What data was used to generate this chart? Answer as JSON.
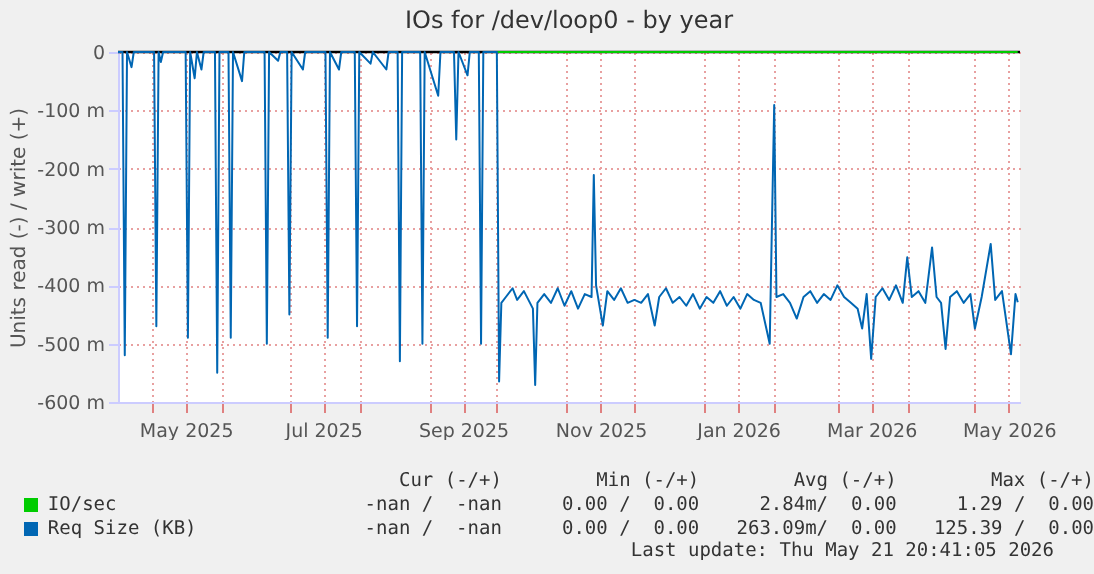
{
  "chart_data": {
    "type": "line",
    "title": "IOs for /dev/loop0 - by year",
    "ylabel": "Units read (-) / write (+)",
    "xlim": [
      "2025-04-16",
      "2026-05-21"
    ],
    "xticks": [
      {
        "value": "2025-05-01",
        "label": null
      },
      {
        "value": "2025-05-16",
        "label": "May 2025"
      },
      {
        "value": "2025-06-01",
        "label": null
      },
      {
        "value": "2025-07-01",
        "label": null
      },
      {
        "value": "2025-07-16",
        "label": "Jul 2025"
      },
      {
        "value": "2025-08-01",
        "label": null
      },
      {
        "value": "2025-09-01",
        "label": null
      },
      {
        "value": "2025-09-16",
        "label": "Sep 2025"
      },
      {
        "value": "2025-10-01",
        "label": null
      },
      {
        "value": "2025-11-01",
        "label": null
      },
      {
        "value": "2025-11-16",
        "label": "Nov 2025"
      },
      {
        "value": "2025-12-01",
        "label": null
      },
      {
        "value": "2026-01-01",
        "label": null
      },
      {
        "value": "2026-01-16",
        "label": "Jan 2026"
      },
      {
        "value": "2026-02-01",
        "label": null
      },
      {
        "value": "2026-03-01",
        "label": null
      },
      {
        "value": "2026-03-16",
        "label": "Mar 2026"
      },
      {
        "value": "2026-04-01",
        "label": null
      },
      {
        "value": "2026-05-01",
        "label": null
      },
      {
        "value": "2026-05-16",
        "label": "May 2026"
      }
    ],
    "ylim": [
      -600,
      0
    ],
    "yticks": [
      {
        "value": -600,
        "label": "-600 m"
      },
      {
        "value": -500,
        "label": "-500 m"
      },
      {
        "value": -400,
        "label": "-400 m"
      },
      {
        "value": -300,
        "label": "-300 m"
      },
      {
        "value": -200,
        "label": "-200 m"
      },
      {
        "value": -100,
        "label": "-100 m"
      },
      0
    ],
    "grid": true,
    "legend": "bottom",
    "ref_lines": [
      {
        "axis": "y",
        "value": 0,
        "color": "#000000"
      }
    ],
    "series": [
      {
        "name": "IO/sec",
        "color": "#00cc00",
        "x": [
          "2025-10-01",
          "2026-05-20"
        ],
        "values": [
          0,
          0
        ]
      },
      {
        "name": "Req Size (KB)",
        "color": "#0066b3",
        "x": [
          "2025-04-16",
          "2025-04-18",
          "2025-04-19",
          "2025-04-20",
          "2025-04-22",
          "2025-04-23",
          "2025-05-02",
          "2025-05-03",
          "2025-05-04",
          "2025-05-05",
          "2025-05-06",
          "2025-05-16",
          "2025-05-17",
          "2025-05-18",
          "2025-05-20",
          "2025-05-21",
          "2025-05-23",
          "2025-05-24",
          "2025-05-29",
          "2025-05-30",
          "2025-05-31",
          "2025-06-04",
          "2025-06-05",
          "2025-06-06",
          "2025-06-10",
          "2025-06-11",
          "2025-06-20",
          "2025-06-21",
          "2025-06-22",
          "2025-06-26",
          "2025-06-27",
          "2025-06-30",
          "2025-07-01",
          "2025-07-02",
          "2025-07-07",
          "2025-07-08",
          "2025-07-17",
          "2025-07-18",
          "2025-07-19",
          "2025-07-23",
          "2025-07-24",
          "2025-07-30",
          "2025-07-31",
          "2025-08-01",
          "2025-08-06",
          "2025-08-07",
          "2025-08-13",
          "2025-08-14",
          "2025-08-18",
          "2025-08-19",
          "2025-08-20",
          "2025-08-28",
          "2025-08-29",
          "2025-08-30",
          "2025-09-05",
          "2025-09-06",
          "2025-09-12",
          "2025-09-13",
          "2025-09-14",
          "2025-09-18",
          "2025-09-19",
          "2025-09-23",
          "2025-09-24",
          "2025-09-25",
          "2025-10-01",
          "2025-10-02",
          "2025-10-03",
          "2025-10-05",
          "2025-10-08",
          "2025-10-10",
          "2025-10-13",
          "2025-10-17",
          "2025-10-18",
          "2025-10-19",
          "2025-10-22",
          "2025-10-25",
          "2025-10-28",
          "2025-10-31",
          "2025-11-03",
          "2025-11-06",
          "2025-11-09",
          "2025-11-12",
          "2025-11-13",
          "2025-11-14",
          "2025-11-17",
          "2025-11-19",
          "2025-11-22",
          "2025-11-25",
          "2025-11-28",
          "2025-12-01",
          "2025-12-04",
          "2025-12-07",
          "2025-12-10",
          "2025-12-12",
          "2025-12-15",
          "2025-12-18",
          "2025-12-21",
          "2025-12-24",
          "2025-12-27",
          "2025-12-30",
          "2026-01-02",
          "2026-01-05",
          "2026-01-08",
          "2026-01-11",
          "2026-01-14",
          "2026-01-17",
          "2026-01-20",
          "2026-01-23",
          "2026-01-26",
          "2026-01-30",
          "2026-02-01",
          "2026-02-02",
          "2026-02-05",
          "2026-02-08",
          "2026-02-11",
          "2026-02-14",
          "2026-02-17",
          "2026-02-20",
          "2026-02-23",
          "2026-02-26",
          "2026-03-01",
          "2026-03-04",
          "2026-03-07",
          "2026-03-10",
          "2026-03-12",
          "2026-03-14",
          "2026-03-16",
          "2026-03-18",
          "2026-03-21",
          "2026-03-24",
          "2026-03-27",
          "2026-03-30",
          "2026-04-01",
          "2026-04-03",
          "2026-04-06",
          "2026-04-09",
          "2026-04-12",
          "2026-04-14",
          "2026-04-16",
          "2026-04-18",
          "2026-04-20",
          "2026-04-23",
          "2026-04-26",
          "2026-04-29",
          "2026-05-01",
          "2026-05-04",
          "2026-05-08",
          "2026-05-10",
          "2026-05-13",
          "2026-05-17",
          "2026-05-19",
          "2026-05-20"
        ],
        "values": [
          0,
          0,
          -520,
          0,
          -26,
          0,
          0,
          -470,
          0,
          -17,
          0,
          0,
          -490,
          0,
          -45,
          0,
          -30,
          0,
          0,
          -550,
          0,
          0,
          -490,
          0,
          -50,
          0,
          0,
          -500,
          0,
          -15,
          0,
          0,
          -450,
          0,
          -30,
          0,
          0,
          -490,
          0,
          -30,
          0,
          0,
          -470,
          0,
          -20,
          0,
          -30,
          0,
          0,
          -530,
          0,
          0,
          -500,
          0,
          -75,
          0,
          0,
          -150,
          0,
          -40,
          0,
          0,
          -500,
          0,
          0,
          -565,
          -430,
          -420,
          -405,
          -425,
          -410,
          -440,
          -571,
          -430,
          -415,
          -430,
          -405,
          -435,
          -410,
          -440,
          -415,
          -420,
          -211,
          -400,
          -469,
          -410,
          -425,
          -405,
          -430,
          -425,
          -430,
          -415,
          -469,
          -420,
          -405,
          -430,
          -420,
          -435,
          -415,
          -440,
          -420,
          -430,
          -410,
          -435,
          -420,
          -440,
          -415,
          -425,
          -430,
          -500,
          -91,
          -420,
          -415,
          -430,
          -457,
          -420,
          -410,
          -430,
          -415,
          -425,
          -400,
          -420,
          -430,
          -440,
          -474,
          -415,
          -526,
          -420,
          -405,
          -425,
          -400,
          -430,
          -352,
          -420,
          -410,
          -430,
          -335,
          -420,
          -430,
          -509,
          -420,
          -410,
          -430,
          -415,
          -474,
          -420,
          -329,
          -425,
          -410,
          -518,
          -415,
          -429
        ]
      }
    ],
    "annotations": [
      "Cur (-/+)",
      "Min (-/+)",
      "Avg (-/+)",
      "Max (-/+)",
      "-nan /  -nan",
      "0.00 /  0.00",
      "2.84m/  0.00",
      "1.29 /  0.00",
      "-nan /  -nan",
      "0.00 /  0.00",
      "263.09m/  0.00",
      "125.39 /  0.00",
      "Last update: Thu May 21 20:41:05 2026"
    ]
  }
}
